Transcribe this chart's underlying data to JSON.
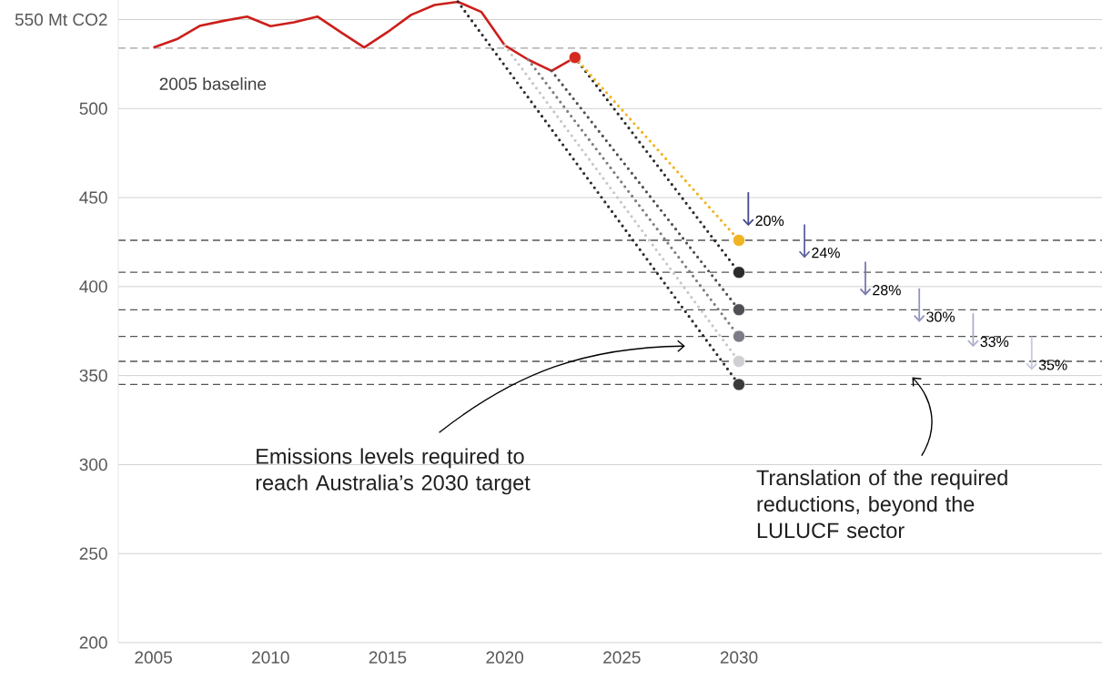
{
  "chart_data": {
    "type": "line",
    "xlim": [
      2003.5,
      2045.5
    ],
    "ylim": [
      200,
      561
    ],
    "xticks": [
      2005,
      2010,
      2015,
      2020,
      2025,
      2030
    ],
    "yticks": [
      200,
      250,
      300,
      350,
      400,
      450,
      500,
      {
        "value": 550,
        "label": "550 Mt CO2"
      }
    ],
    "grid": "y",
    "series": [
      {
        "color": "#cc1f1a",
        "line_style": "solid",
        "x": [
          2005,
          2006,
          2007,
          2008,
          2009,
          2010,
          2011,
          2012,
          2013,
          2014,
          2015,
          2016,
          2017,
          2018,
          2019,
          2020,
          2021,
          2022,
          2023
        ],
        "values": [
          534.3,
          539,
          546.6,
          549.3,
          551.7,
          546.3,
          548.5,
          551.7,
          542.9,
          534.3,
          543,
          552.6,
          558.2,
          560,
          554.3,
          535.5,
          527.5,
          521.2,
          528.7
        ]
      },
      {
        "color": "#2b2b2b",
        "line_style": "dotted",
        "x": [
          2018,
          2030
        ],
        "values": [
          560,
          345
        ]
      },
      {
        "color": "#c8c8c8",
        "line_style": "dotted",
        "x": [
          2020,
          2030
        ],
        "values": [
          535.5,
          358
        ]
      },
      {
        "color": "#7c7c86",
        "line_style": "dotted",
        "x": [
          2021,
          2030
        ],
        "values": [
          527.5,
          372
        ]
      },
      {
        "color": "#4f4f55",
        "line_style": "dotted",
        "x": [
          2022,
          2030
        ],
        "values": [
          521.2,
          387
        ]
      },
      {
        "color": "#2b2b2b",
        "line_style": "dotted",
        "x": [
          2023,
          2030
        ],
        "values": [
          528.7,
          408
        ]
      },
      {
        "color": "#f0b323",
        "line_style": "dotted",
        "x": [
          2023,
          2030
        ],
        "values": [
          528.7,
          426
        ]
      },
      {
        "type": "scatter",
        "marker": "circle",
        "x": [
          2023,
          2030,
          2030,
          2030,
          2030,
          2030,
          2030
        ],
        "values": [
          528.7,
          426,
          408,
          387,
          372,
          358,
          345
        ],
        "colors": [
          "#d42a20",
          "#f0b323",
          "#2b2b2b",
          "#4f4f55",
          "#7c7c86",
          "#d0d0d4",
          "#3a3a3a"
        ]
      }
    ],
    "ref_lines": [
      {
        "axis": "y",
        "value": 534,
        "label": "2005 baseline",
        "color": "#a0a0a0",
        "line_style": "dashed"
      },
      {
        "axis": "y",
        "value": 426,
        "color": "#555555",
        "line_style": "dashed"
      },
      {
        "axis": "y",
        "value": 408,
        "color": "#555555",
        "line_style": "dashed"
      },
      {
        "axis": "y",
        "value": 387,
        "color": "#555555",
        "line_style": "dashed"
      },
      {
        "axis": "y",
        "value": 372,
        "color": "#555555",
        "line_style": "dashed"
      },
      {
        "axis": "y",
        "value": 358,
        "color": "#555555",
        "line_style": "dashed"
      },
      {
        "axis": "y",
        "value": 345,
        "color": "#555555",
        "line_style": "dashed"
      }
    ],
    "annotations": [
      "Emissions levels required to reach Australia’s 2030 target",
      "Translation of the required reductions, beyond the LULUCF sector",
      {
        "text": "20%",
        "x": 2030.4,
        "y": 426
      },
      {
        "text": "24%",
        "x": 2032.8,
        "y": 408
      },
      {
        "text": "28%",
        "x": 2035.4,
        "y": 387
      },
      {
        "text": "30%",
        "x": 2037.7,
        "y": 372
      },
      {
        "text": "33%",
        "x": 2040,
        "y": 358
      },
      {
        "text": "35%",
        "x": 2042.5,
        "y": 345
      }
    ]
  }
}
